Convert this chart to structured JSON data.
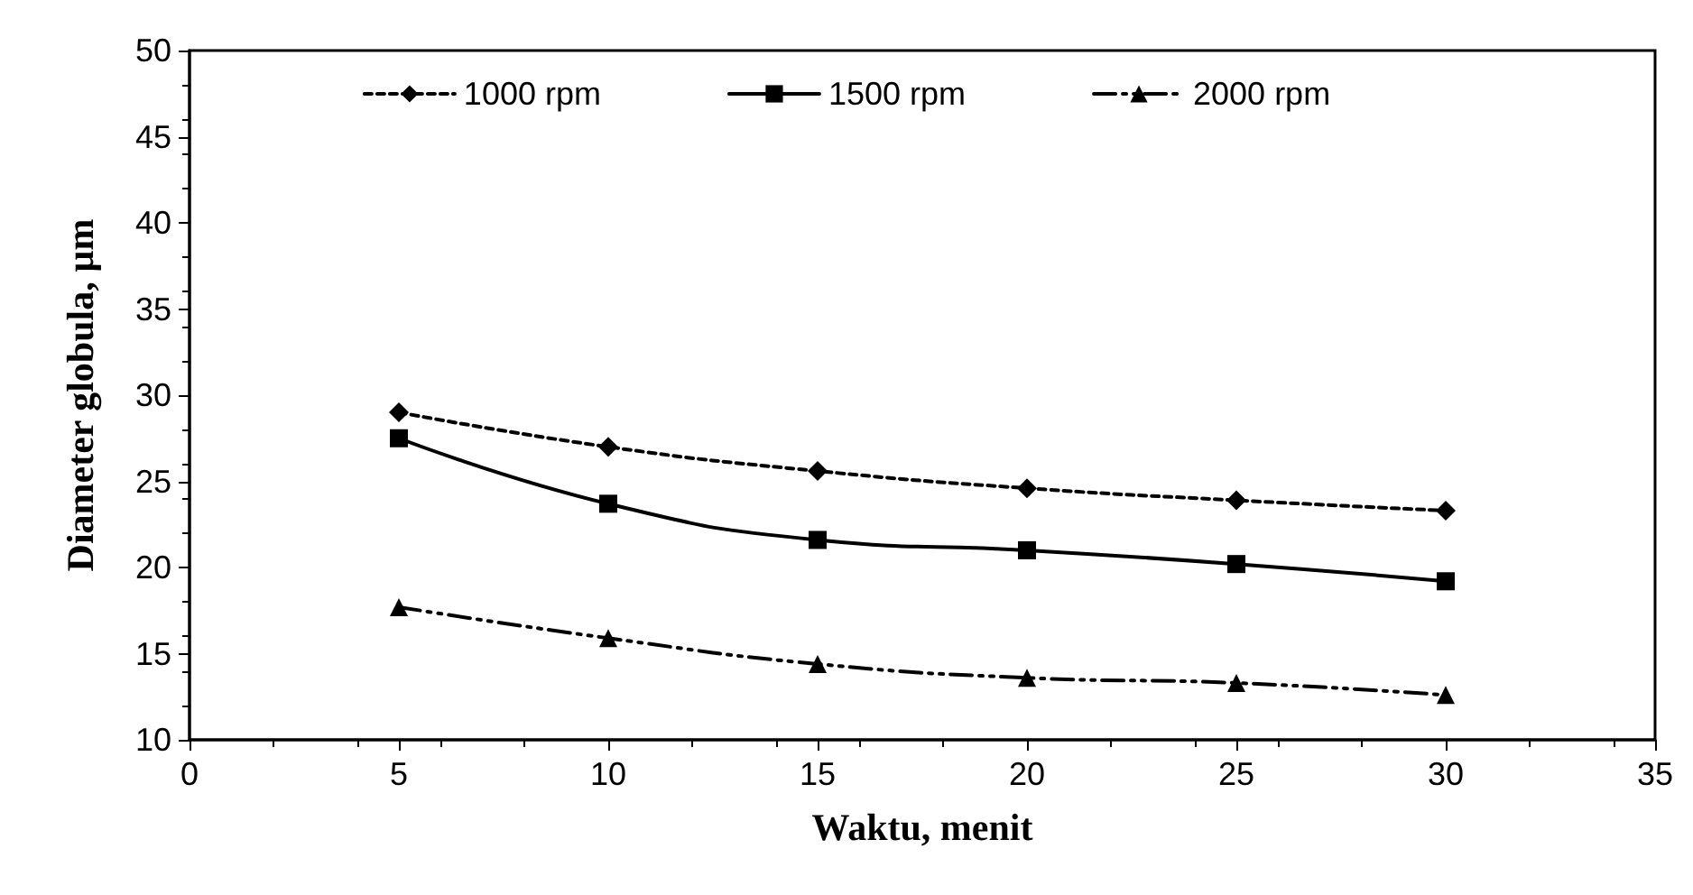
{
  "chart_data": {
    "type": "line",
    "xlabel": "Waktu, menit",
    "ylabel": "Diameter globula, µm",
    "x": [
      5,
      10,
      15,
      20,
      25,
      30
    ],
    "series": [
      {
        "name": "1000 rpm",
        "color": "#000000",
        "marker": "diamond",
        "line_style": "dotted",
        "values": [
          29.0,
          27.0,
          25.6,
          24.6,
          23.9,
          23.3
        ]
      },
      {
        "name": "1500 rpm",
        "color": "#000000",
        "marker": "square",
        "line_style": "solid",
        "values": [
          27.5,
          23.7,
          21.6,
          21.0,
          20.2,
          19.2
        ]
      },
      {
        "name": "2000 rpm",
        "color": "#000000",
        "marker": "triangle",
        "line_style": "dashed",
        "values": [
          17.7,
          15.9,
          14.4,
          13.6,
          13.3,
          12.6
        ]
      }
    ],
    "xlim": [
      0,
      35
    ],
    "xticks": [
      0,
      5,
      10,
      15,
      20,
      25,
      30,
      35
    ],
    "ylim": [
      10,
      50
    ],
    "yticks": [
      10,
      15,
      20,
      25,
      30,
      35,
      40,
      45,
      50
    ],
    "grid": false,
    "legend": "top"
  }
}
